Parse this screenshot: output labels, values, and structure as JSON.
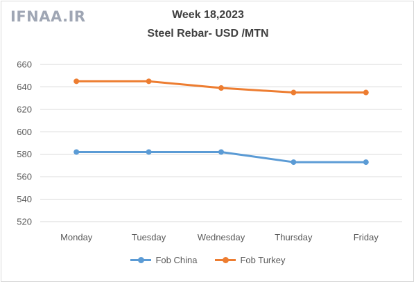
{
  "watermark": "IFNAA.IR",
  "chart_data": {
    "type": "line",
    "title": "Week 18,2023",
    "subtitle": "Steel Rebar- USD /MTN",
    "categories": [
      "Monday",
      "Tuesday",
      "Wednesday",
      "Thursday",
      "Friday"
    ],
    "series": [
      {
        "name": "Fob China",
        "color": "#5b9bd5",
        "values": [
          582,
          582,
          582,
          573,
          573
        ]
      },
      {
        "name": "Fob Turkey",
        "color": "#ed7d31",
        "values": [
          645,
          645,
          639,
          635,
          635
        ]
      }
    ],
    "ylim": [
      520,
      660
    ],
    "yticks": [
      520,
      540,
      560,
      580,
      600,
      620,
      640,
      660
    ],
    "grid": true,
    "legend_position": "bottom"
  }
}
